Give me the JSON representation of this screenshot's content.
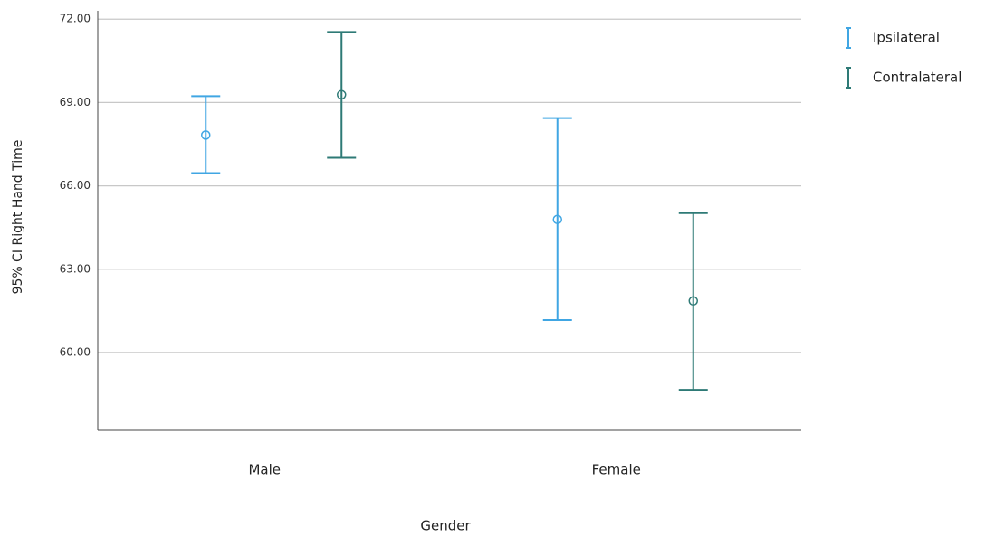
{
  "chart_data": {
    "type": "errorbar",
    "x_label": "Gender",
    "y_label": "95% CI Right Hand Time",
    "categories": [
      "Male",
      "Female"
    ],
    "series": [
      {
        "name": "Ipsilateral",
        "color": "#40a6e3",
        "values": [
          67.83,
          64.79
        ],
        "lower": [
          66.46,
          61.17
        ],
        "upper": [
          69.23,
          68.44
        ]
      },
      {
        "name": "Contralateral",
        "color": "#2e7a76",
        "values": [
          69.28,
          61.86
        ],
        "lower": [
          67.01,
          58.66
        ],
        "upper": [
          71.54,
          65.02
        ]
      }
    ],
    "ylim": [
      57.2,
      72.3
    ],
    "yticks": [
      {
        "value": 60,
        "label": "60.00"
      },
      {
        "value": 63,
        "label": "63.00"
      },
      {
        "value": 66,
        "label": "66.00"
      },
      {
        "value": 69,
        "label": "69.00"
      },
      {
        "value": 72,
        "label": "72.00"
      }
    ],
    "grid": true,
    "legend": "right"
  }
}
